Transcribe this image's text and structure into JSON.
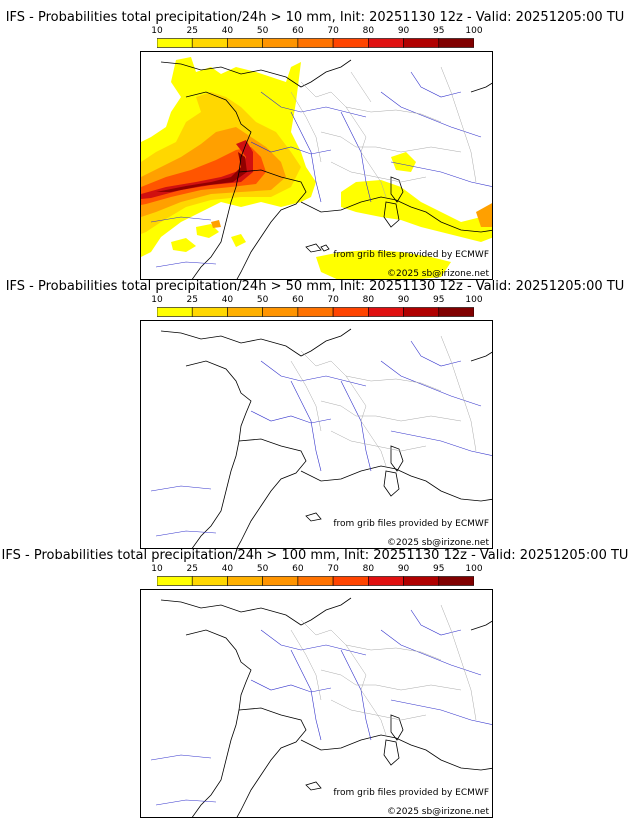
{
  "colorbar": {
    "ticks": [
      "10",
      "25",
      "40",
      "50",
      "60",
      "70",
      "80",
      "90",
      "95",
      "100"
    ],
    "colors": [
      "#ffff00",
      "#ffd700",
      "#ffb000",
      "#ff9400",
      "#ff7200",
      "#ff4400",
      "#e01010",
      "#b00000",
      "#800000"
    ]
  },
  "panels": [
    {
      "id": "p10",
      "title": "IFS - Probabilities total precipitation/24h > 10 mm, Init: 20251130 12z - Valid: 20251205:00 TU",
      "threshold_mm": 10
    },
    {
      "id": "p50",
      "title": "IFS - Probabilities total precipitation/24h > 50 mm, Init: 20251130 12z - Valid: 20251205:00 TU",
      "threshold_mm": 50
    },
    {
      "id": "p100",
      "title": "IFS - Probabilities total precipitation/24h > 100 mm, Init: 20251130 12z - Valid: 20251205:00 TU",
      "threshold_mm": 100
    }
  ],
  "credits": {
    "source": "from grib files provided by ECMWF",
    "copyright": "©2025 sb@irizone.net"
  },
  "colors": {
    "rivers": "#3333cc",
    "borders": "#aaaaaa",
    "coast": "#000000"
  }
}
